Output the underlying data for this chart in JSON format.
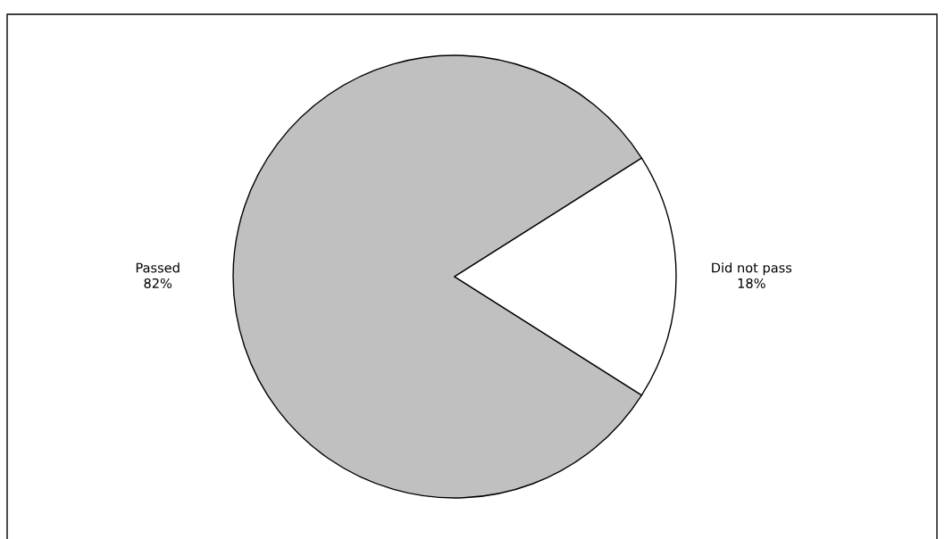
{
  "chart_data": {
    "type": "pie",
    "categories": [
      "Passed",
      "Did not pass"
    ],
    "values": [
      82,
      18
    ],
    "value_labels": [
      "82%",
      "18%"
    ],
    "colors": [
      "#c0c0c0",
      "#ffffff"
    ],
    "legend": false
  }
}
